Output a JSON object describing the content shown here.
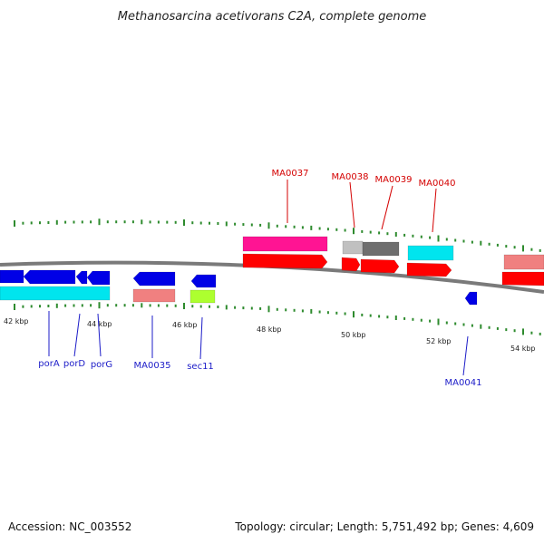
{
  "title": "Methanosarcina acetivorans C2A, complete genome",
  "footer": {
    "accession": "Accession: NC_003552",
    "summary": "Topology: circular; Length: 5,751,492 bp; Genes: 4,609"
  },
  "ticks": [
    {
      "label": "42 kbp"
    },
    {
      "label": "44 kbp"
    },
    {
      "label": "46 kbp"
    },
    {
      "label": "48 kbp"
    },
    {
      "label": "50 kbp"
    },
    {
      "label": "52 kbp"
    },
    {
      "label": "54 kbp"
    }
  ],
  "gene_labels": [
    {
      "id": "porA",
      "text": "porA",
      "color": "#1c1cc8"
    },
    {
      "id": "porD",
      "text": "porD",
      "color": "#1c1cc8"
    },
    {
      "id": "porG",
      "text": "porG",
      "color": "#1c1cc8"
    },
    {
      "id": "MA0035",
      "text": "MA0035",
      "color": "#1c1cc8"
    },
    {
      "id": "sec11",
      "text": "sec11",
      "color": "#1c1cc8"
    },
    {
      "id": "MA0041",
      "text": "MA0041",
      "color": "#1c1cc8"
    },
    {
      "id": "MA0037",
      "text": "MA0037",
      "color": "#d40000"
    },
    {
      "id": "MA0038",
      "text": "MA0038",
      "color": "#d40000"
    },
    {
      "id": "MA0039",
      "text": "MA0039",
      "color": "#d40000"
    },
    {
      "id": "MA0040",
      "text": "MA0040",
      "color": "#d40000"
    }
  ],
  "colors": {
    "backbone": "#7a7a7a",
    "tick": "#2e8b2e",
    "cds_blue": "#0000e6",
    "rna_cyan": "#00e5ee",
    "salmon": "#f08080",
    "lime": "#adff2f",
    "magenta": "#ff1493",
    "red": "#ff0000",
    "light_gray": "#c0c0c0",
    "dark_gray": "#6e6e6e"
  }
}
